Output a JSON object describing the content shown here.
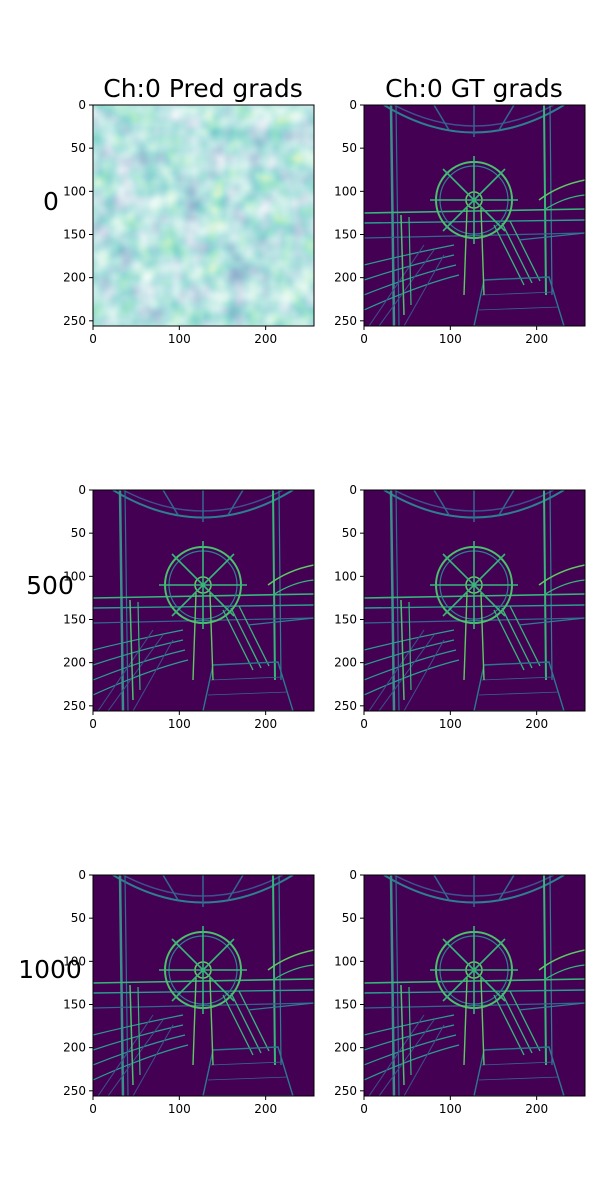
{
  "figure": {
    "column_titles": [
      "Ch:0 Pred grads",
      "Ch:0 GT grads"
    ],
    "row_labels": [
      "0",
      "500",
      "1000"
    ]
  },
  "colors": {
    "viridis_dark": "#440154",
    "viridis_blue": "#31688e",
    "viridis_teal": "#35b779",
    "viridis_yellow": "#fde725",
    "axis": "#000000",
    "background": "#ffffff"
  },
  "chart_data": {
    "type": "heatmap",
    "colormap": "viridis",
    "rows": 3,
    "cols": 2,
    "image_size": [
      256,
      256
    ],
    "xlim": [
      0,
      256
    ],
    "ylim": [
      256,
      0
    ],
    "x_ticks": [
      0,
      100,
      200
    ],
    "y_ticks": [
      0,
      50,
      100,
      150,
      200,
      250
    ],
    "panels": [
      {
        "row": 0,
        "col": 0,
        "content": "noise"
      },
      {
        "row": 0,
        "col": 1,
        "content": "edges"
      },
      {
        "row": 1,
        "col": 0,
        "content": "edges"
      },
      {
        "row": 1,
        "col": 1,
        "content": "edges"
      },
      {
        "row": 2,
        "col": 0,
        "content": "edges"
      },
      {
        "row": 2,
        "col": 1,
        "content": "edges"
      }
    ]
  }
}
